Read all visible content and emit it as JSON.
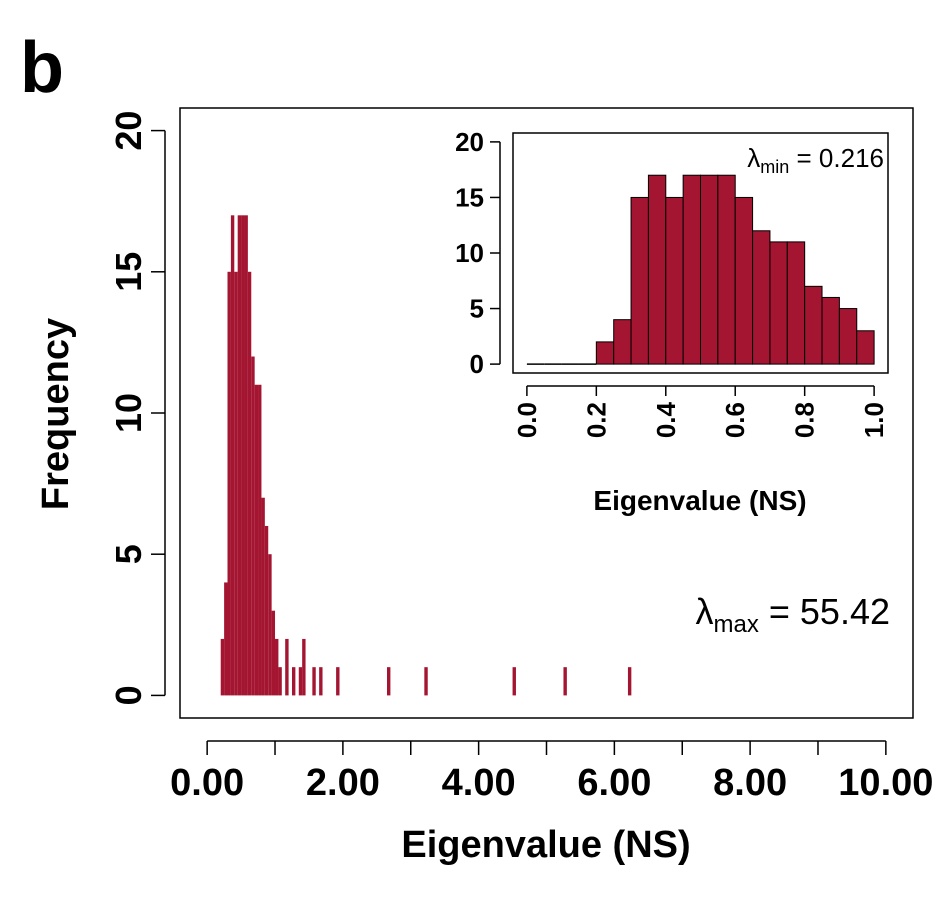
{
  "panel_label": "b",
  "colors": {
    "bar": "#A31530",
    "axis": "#000000"
  },
  "chart_data": [
    {
      "type": "bar",
      "role": "main",
      "xlabel": "Eigenvalue (NS)",
      "ylabel": "Frequency",
      "xlim": [
        -0.4,
        10.4
      ],
      "ylim": [
        -0.8,
        20.8
      ],
      "x_ticks": [
        0,
        2,
        4,
        6,
        8,
        10
      ],
      "x_tick_labels": [
        "0.00",
        "2.00",
        "4.00",
        "6.00",
        "8.00",
        "10.00"
      ],
      "x_minor_ticks": [
        1,
        3,
        5,
        7,
        9
      ],
      "y_ticks": [
        0,
        5,
        10,
        15,
        20
      ],
      "y_tick_labels": [
        "0",
        "5",
        "10",
        "15",
        "20"
      ],
      "bin_width": 0.05,
      "bins": [
        {
          "x0": 0.2,
          "x1": 0.25,
          "count": 2
        },
        {
          "x0": 0.25,
          "x1": 0.3,
          "count": 4
        },
        {
          "x0": 0.3,
          "x1": 0.35,
          "count": 15
        },
        {
          "x0": 0.35,
          "x1": 0.4,
          "count": 17
        },
        {
          "x0": 0.4,
          "x1": 0.45,
          "count": 15
        },
        {
          "x0": 0.45,
          "x1": 0.5,
          "count": 17
        },
        {
          "x0": 0.5,
          "x1": 0.55,
          "count": 17
        },
        {
          "x0": 0.55,
          "x1": 0.6,
          "count": 17
        },
        {
          "x0": 0.6,
          "x1": 0.65,
          "count": 15
        },
        {
          "x0": 0.65,
          "x1": 0.7,
          "count": 12
        },
        {
          "x0": 0.7,
          "x1": 0.75,
          "count": 11
        },
        {
          "x0": 0.75,
          "x1": 0.8,
          "count": 11
        },
        {
          "x0": 0.8,
          "x1": 0.85,
          "count": 7
        },
        {
          "x0": 0.85,
          "x1": 0.9,
          "count": 6
        },
        {
          "x0": 0.9,
          "x1": 0.95,
          "count": 5
        },
        {
          "x0": 0.95,
          "x1": 1.0,
          "count": 3
        },
        {
          "x0": 1.0,
          "x1": 1.05,
          "count": 2
        },
        {
          "x0": 1.05,
          "x1": 1.1,
          "count": 1
        },
        {
          "x0": 1.15,
          "x1": 1.2,
          "count": 2
        },
        {
          "x0": 1.25,
          "x1": 1.3,
          "count": 1
        },
        {
          "x0": 1.35,
          "x1": 1.4,
          "count": 1
        },
        {
          "x0": 1.4,
          "x1": 1.45,
          "count": 2
        },
        {
          "x0": 1.55,
          "x1": 1.6,
          "count": 1
        },
        {
          "x0": 1.65,
          "x1": 1.7,
          "count": 1
        },
        {
          "x0": 1.9,
          "x1": 1.95,
          "count": 1
        },
        {
          "x0": 2.65,
          "x1": 2.7,
          "count": 1
        },
        {
          "x0": 3.2,
          "x1": 3.25,
          "count": 1
        },
        {
          "x0": 4.5,
          "x1": 4.55,
          "count": 1
        },
        {
          "x0": 5.25,
          "x1": 5.3,
          "count": 1
        },
        {
          "x0": 6.2,
          "x1": 6.25,
          "count": 1
        }
      ],
      "annotation": {
        "symbol": "λ",
        "subscript": "max",
        "text": " = 55.42"
      }
    },
    {
      "type": "bar",
      "role": "inset",
      "xlabel": "Eigenvalue (NS)",
      "ylabel": "",
      "xlim": [
        -0.04,
        1.04
      ],
      "ylim": [
        -0.8,
        20.8
      ],
      "x_ticks": [
        0,
        0.2,
        0.4,
        0.6,
        0.8,
        1.0
      ],
      "x_tick_labels": [
        "0.0",
        "0.2",
        "0.4",
        "0.6",
        "0.8",
        "1.0"
      ],
      "y_ticks": [
        0,
        5,
        10,
        15,
        20
      ],
      "y_tick_labels": [
        "0",
        "5",
        "10",
        "15",
        "20"
      ],
      "bin_width": 0.05,
      "bins": [
        {
          "x0": 0.0,
          "x1": 0.05,
          "count": 0
        },
        {
          "x0": 0.05,
          "x1": 0.1,
          "count": 0
        },
        {
          "x0": 0.1,
          "x1": 0.15,
          "count": 0
        },
        {
          "x0": 0.15,
          "x1": 0.2,
          "count": 0
        },
        {
          "x0": 0.2,
          "x1": 0.25,
          "count": 2
        },
        {
          "x0": 0.25,
          "x1": 0.3,
          "count": 4
        },
        {
          "x0": 0.3,
          "x1": 0.35,
          "count": 15
        },
        {
          "x0": 0.35,
          "x1": 0.4,
          "count": 17
        },
        {
          "x0": 0.4,
          "x1": 0.45,
          "count": 15
        },
        {
          "x0": 0.45,
          "x1": 0.5,
          "count": 17
        },
        {
          "x0": 0.5,
          "x1": 0.55,
          "count": 17
        },
        {
          "x0": 0.55,
          "x1": 0.6,
          "count": 17
        },
        {
          "x0": 0.6,
          "x1": 0.65,
          "count": 15
        },
        {
          "x0": 0.65,
          "x1": 0.7,
          "count": 12
        },
        {
          "x0": 0.7,
          "x1": 0.75,
          "count": 11
        },
        {
          "x0": 0.75,
          "x1": 0.8,
          "count": 11
        },
        {
          "x0": 0.8,
          "x1": 0.85,
          "count": 7
        },
        {
          "x0": 0.85,
          "x1": 0.9,
          "count": 6
        },
        {
          "x0": 0.9,
          "x1": 0.95,
          "count": 5
        },
        {
          "x0": 0.95,
          "x1": 1.0,
          "count": 3
        }
      ],
      "annotation": {
        "symbol": "λ",
        "subscript": "min",
        "text": " = 0.216"
      }
    }
  ]
}
